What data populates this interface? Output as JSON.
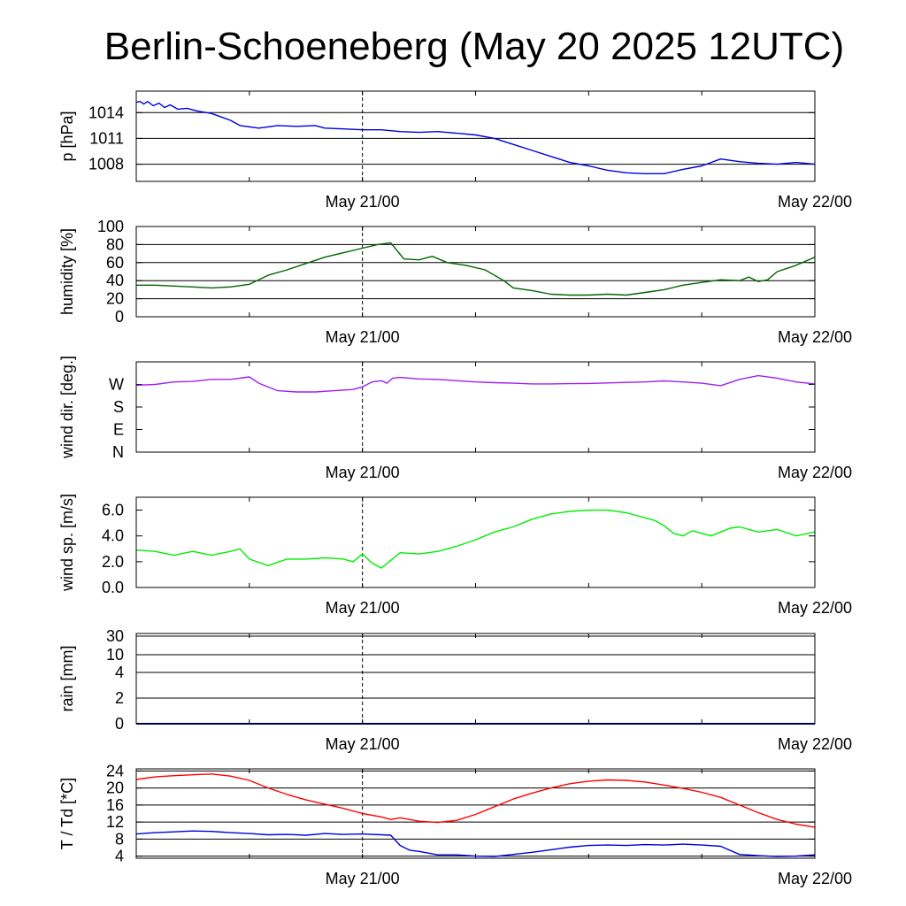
{
  "title": "Berlin-Schoeneberg (May 20 2025 12UTC)",
  "x_axis": {
    "tick_labels": [
      "May 21/00",
      "May 22/00"
    ],
    "range_hours": [
      0,
      36
    ],
    "label_at_hours": [
      12,
      36
    ]
  },
  "chart_data": [
    {
      "type": "line",
      "name": "pressure",
      "ylabel": "p [hPa]",
      "yticks": [
        1008,
        1011,
        1014
      ],
      "ylim": [
        1006,
        1016.5
      ],
      "grid": true,
      "series": [
        {
          "color": "#0000dd",
          "x": [
            0,
            0.2,
            0.4,
            0.6,
            0.9,
            1.2,
            1.5,
            1.8,
            2.2,
            2.7,
            3.2,
            4,
            5,
            5.5,
            6.5,
            7.5,
            8.5,
            9.5,
            10,
            11,
            12,
            13,
            14,
            15,
            16,
            17,
            18,
            19,
            20,
            21,
            22,
            23,
            24,
            25,
            26,
            27,
            28,
            29,
            30,
            31,
            32,
            33,
            34,
            35,
            36
          ],
          "y": [
            1015.2,
            1015.3,
            1015,
            1015.3,
            1014.8,
            1015.1,
            1014.6,
            1014.9,
            1014.4,
            1014.5,
            1014.2,
            1013.9,
            1013.1,
            1012.5,
            1012.2,
            1012.5,
            1012.4,
            1012.5,
            1012.2,
            1012.1,
            1012.0,
            1012.0,
            1011.8,
            1011.7,
            1011.8,
            1011.6,
            1011.4,
            1011.0,
            1010.3,
            1009.6,
            1008.9,
            1008.2,
            1007.8,
            1007.3,
            1007.0,
            1006.9,
            1006.9,
            1007.4,
            1007.8,
            1008.6,
            1008.3,
            1008.1,
            1008.0,
            1008.2,
            1008.0
          ]
        }
      ]
    },
    {
      "type": "line",
      "name": "humidity",
      "ylabel": "humidity [%]",
      "yticks": [
        0,
        20,
        40,
        60,
        80,
        100
      ],
      "ylim": [
        0,
        100
      ],
      "grid": true,
      "series": [
        {
          "color": "#006400",
          "x": [
            0,
            1,
            2,
            3,
            4,
            5,
            6,
            7,
            8,
            9,
            10,
            11,
            12,
            12.8,
            13.5,
            14.2,
            15,
            15.7,
            16.5,
            17.5,
            18.5,
            19.5,
            20,
            21,
            22,
            23,
            24,
            25,
            26,
            27,
            28,
            29,
            30,
            31,
            32,
            32.5,
            33,
            33.5,
            34,
            35,
            36
          ],
          "y": [
            35,
            35,
            34,
            33,
            32,
            33,
            36,
            46,
            52,
            59,
            66,
            71,
            76,
            80,
            82,
            64,
            63,
            67,
            60,
            57,
            52,
            40,
            32,
            29,
            25,
            24,
            24,
            25,
            24,
            27,
            30,
            35,
            38,
            41,
            40,
            44,
            39,
            41,
            50,
            57,
            66
          ]
        }
      ]
    },
    {
      "type": "line",
      "name": "wind direction",
      "ylabel": "wind dir. [deg.]",
      "yticks": [
        "N",
        "E",
        "S",
        "W"
      ],
      "yticks_deg": [
        0,
        90,
        180,
        270
      ],
      "ylim": [
        0,
        360
      ],
      "grid": false,
      "series": [
        {
          "color": "#a020f0",
          "x": [
            0,
            1,
            2,
            3,
            4,
            5,
            6,
            6.5,
            7.5,
            8.5,
            9.5,
            10.5,
            11.5,
            12,
            12.5,
            13,
            13.3,
            13.6,
            14,
            15,
            16,
            17,
            18,
            19,
            20,
            21,
            22,
            23,
            24,
            25,
            26,
            27,
            28,
            29,
            30,
            31,
            32,
            33,
            34,
            35,
            36
          ],
          "y": [
            267,
            270,
            280,
            282,
            290,
            290,
            300,
            275,
            245,
            240,
            240,
            245,
            250,
            260,
            280,
            285,
            275,
            295,
            298,
            292,
            290,
            285,
            280,
            277,
            275,
            272,
            272,
            273,
            274,
            276,
            278,
            280,
            284,
            280,
            275,
            265,
            290,
            305,
            295,
            280,
            272
          ]
        }
      ]
    },
    {
      "type": "line",
      "name": "wind speed",
      "ylabel": "wind sp. [m/s]",
      "yticks": [
        "0.0",
        "2.0",
        "4.0",
        "6.0"
      ],
      "ylim": [
        0,
        7
      ],
      "grid": false,
      "series": [
        {
          "color": "#00ee00",
          "x": [
            0,
            1,
            2,
            3,
            4,
            5,
            5.5,
            6,
            7,
            8,
            9,
            10,
            11,
            11.5,
            12,
            12.5,
            13,
            13.5,
            14,
            15,
            16,
            17,
            18,
            19,
            20,
            21,
            22,
            23,
            24,
            25,
            26,
            27,
            27.5,
            28,
            28.5,
            29,
            29.5,
            30,
            30.5,
            31,
            31.5,
            32,
            33,
            34,
            35,
            36
          ],
          "y": [
            2.9,
            2.8,
            2.5,
            2.8,
            2.5,
            2.8,
            3.0,
            2.2,
            1.7,
            2.2,
            2.2,
            2.3,
            2.2,
            2.0,
            2.6,
            1.9,
            1.5,
            2.1,
            2.7,
            2.6,
            2.8,
            3.2,
            3.7,
            4.3,
            4.7,
            5.3,
            5.7,
            5.9,
            6.0,
            6.0,
            5.8,
            5.4,
            5.2,
            4.8,
            4.2,
            4.0,
            4.4,
            4.2,
            4.0,
            4.3,
            4.6,
            4.7,
            4.3,
            4.5,
            4.0,
            4.3
          ]
        }
      ]
    },
    {
      "type": "line",
      "name": "rain",
      "ylabel": "rain [mm]",
      "yticks": [
        "0",
        "2",
        "4",
        "10",
        "30"
      ],
      "grid": true,
      "series": [
        {
          "color": "#00008b",
          "x": [
            0,
            36
          ],
          "y": [
            0,
            0
          ]
        }
      ]
    },
    {
      "type": "line",
      "name": "temperature and dew point",
      "ylabel": "T / Td [*C]",
      "yticks": [
        4,
        8,
        12,
        16,
        20,
        24
      ],
      "ylim": [
        3.5,
        24.5
      ],
      "grid": true,
      "series": [
        {
          "color": "#ff0000",
          "x": [
            0,
            1,
            2,
            3,
            4,
            5,
            6,
            7,
            8,
            9,
            10,
            11,
            12,
            13,
            13.5,
            14,
            15,
            16,
            17,
            18,
            19,
            20,
            21,
            22,
            23,
            24,
            25,
            26,
            27,
            28,
            29,
            30,
            31,
            32,
            33,
            34,
            35,
            36
          ],
          "y": [
            22,
            22.6,
            22.9,
            23.1,
            23.3,
            22.8,
            21.8,
            20,
            18.5,
            17.2,
            16.2,
            15.2,
            14.0,
            13.2,
            12.6,
            13.0,
            12.2,
            11.9,
            12.4,
            13.8,
            15.6,
            17.4,
            18.8,
            20.0,
            21.0,
            21.6,
            21.9,
            21.8,
            21.4,
            20.7,
            19.9,
            19.0,
            17.8,
            16.0,
            14.2,
            12.6,
            11.5,
            10.8
          ]
        },
        {
          "color": "#0000dd",
          "x": [
            0,
            1,
            2,
            3,
            4,
            5,
            6,
            7,
            8,
            9,
            10,
            11,
            12,
            13,
            13.5,
            14,
            14.5,
            15,
            16,
            17,
            18,
            19,
            20,
            21,
            22,
            23,
            24,
            25,
            26,
            27,
            28,
            29,
            30,
            31,
            32,
            33,
            34,
            35,
            36
          ],
          "y": [
            9.2,
            9.5,
            9.7,
            9.9,
            9.8,
            9.5,
            9.3,
            9.0,
            9.1,
            8.9,
            9.3,
            9.1,
            9.2,
            9.0,
            8.9,
            6.5,
            5.4,
            5.1,
            4.3,
            4.3,
            4.0,
            3.9,
            4.4,
            4.9,
            5.5,
            6.1,
            6.5,
            6.6,
            6.5,
            6.7,
            6.6,
            6.8,
            6.6,
            6.3,
            4.4,
            4.1,
            3.9,
            4.0,
            4.3
          ]
        }
      ]
    }
  ]
}
